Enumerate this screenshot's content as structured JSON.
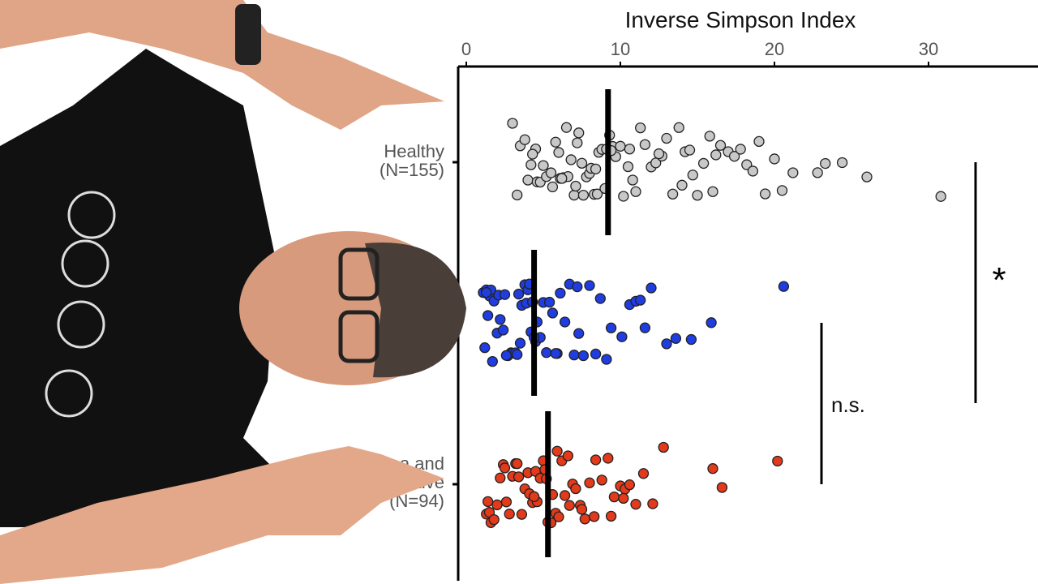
{
  "chart_data": {
    "type": "scatter",
    "title": "Inverse Simpson Index",
    "xlabel": "Inverse Simpson Index",
    "xlim": [
      0,
      36
    ],
    "x_ticks": [
      0,
      10,
      20,
      30
    ],
    "axis_position": "top",
    "grid": false,
    "categories": [
      {
        "label_lines": [
          "Healthy",
          "(N=155)"
        ],
        "color": "#c8c8c8",
        "median": 9.2,
        "values": [
          3.0,
          3.3,
          3.5,
          3.8,
          4.0,
          4.2,
          4.5,
          4.6,
          4.8,
          5.0,
          5.2,
          5.5,
          5.6,
          5.8,
          6.0,
          6.1,
          6.3,
          6.5,
          6.6,
          6.8,
          7.0,
          7.1,
          7.3,
          7.5,
          7.6,
          7.8,
          8.0,
          8.1,
          8.3,
          8.5,
          8.6,
          8.8,
          9.0,
          9.1,
          9.3,
          9.5,
          9.7,
          10.0,
          10.2,
          10.5,
          10.8,
          11.0,
          11.3,
          11.6,
          12.0,
          12.3,
          12.7,
          13.0,
          13.4,
          13.8,
          14.2,
          14.5,
          14.7,
          15.0,
          15.4,
          15.8,
          16.2,
          16.5,
          17.0,
          17.4,
          17.8,
          18.2,
          18.6,
          19.0,
          19.4,
          20.0,
          20.5,
          21.2,
          22.8,
          23.3,
          24.4,
          26.0,
          30.8,
          4.3,
          6.2,
          7.2,
          8.4,
          9.4,
          10.6,
          12.5,
          14.0,
          16.0
        ]
      },
      {
        "label_lines": [],
        "color": "#1f3de0",
        "median": 4.4,
        "values": [
          1.1,
          1.2,
          1.3,
          1.4,
          1.5,
          1.6,
          1.7,
          1.8,
          2.0,
          2.1,
          2.2,
          2.4,
          2.5,
          2.7,
          2.9,
          3.0,
          3.2,
          3.3,
          3.5,
          3.6,
          3.8,
          3.9,
          4.0,
          4.1,
          4.2,
          4.3,
          4.5,
          4.6,
          4.8,
          5.0,
          5.2,
          5.4,
          5.6,
          5.9,
          6.1,
          6.4,
          6.7,
          7.0,
          7.3,
          7.6,
          8.0,
          8.4,
          8.7,
          9.1,
          9.4,
          10.1,
          10.6,
          11.0,
          11.3,
          11.6,
          12.0,
          13.0,
          13.6,
          14.6,
          15.9,
          20.6,
          1.3,
          2.6,
          3.4,
          4.4,
          5.8,
          7.2
        ]
      },
      {
        "label_lines": [
          "hea and",
          "ositive",
          "(N=94)"
        ],
        "color": "#e23a1a",
        "median": 5.3,
        "values": [
          1.3,
          1.5,
          1.6,
          1.8,
          2.0,
          2.2,
          2.4,
          2.6,
          2.8,
          3.0,
          3.2,
          3.4,
          3.6,
          3.8,
          4.0,
          4.1,
          4.3,
          4.5,
          4.6,
          4.8,
          5.0,
          5.1,
          5.3,
          5.5,
          5.6,
          5.8,
          6.0,
          6.2,
          6.4,
          6.6,
          6.9,
          7.1,
          7.4,
          7.7,
          8.0,
          8.4,
          8.8,
          9.2,
          9.6,
          10.0,
          10.3,
          10.6,
          11.0,
          11.5,
          12.1,
          12.8,
          16.0,
          16.6,
          20.2,
          1.4,
          2.5,
          3.3,
          4.4,
          5.2,
          5.9,
          6.7,
          7.5,
          8.3,
          9.4,
          10.2
        ]
      }
    ],
    "annotations": [
      {
        "text": "*",
        "between": [
          "Healthy",
          "third group"
        ]
      },
      {
        "text": "n.s.",
        "between": [
          "second group",
          "third group"
        ]
      }
    ]
  }
}
